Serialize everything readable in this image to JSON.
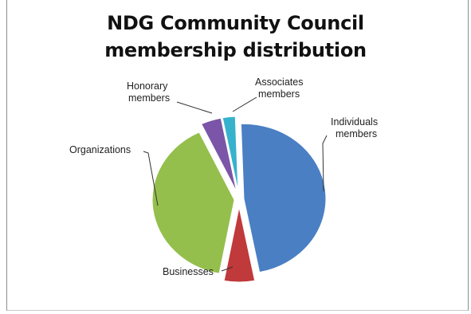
{
  "chart_data": {
    "type": "pie",
    "title_lines": [
      "NDG Community Council",
      "membership distribution"
    ],
    "exploded": true,
    "slices": [
      {
        "label": "Individuals members",
        "label_lines": [
          "Individuals",
          "members"
        ],
        "value": 47.5,
        "color": "#4a7fc4"
      },
      {
        "label": "Businesses",
        "label_lines": [
          "Businesses"
        ],
        "value": 6.0,
        "color": "#c0393b"
      },
      {
        "label": "Organizations",
        "label_lines": [
          "Organizations"
        ],
        "value": 40.0,
        "color": "#94bf4c"
      },
      {
        "label": "Honorary members",
        "label_lines": [
          "Honorary",
          "members"
        ],
        "value": 4.0,
        "color": "#7a55a8"
      },
      {
        "label": "Associates members",
        "label_lines": [
          "Associates",
          "members"
        ],
        "value": 2.5,
        "color": "#37b2cc"
      }
    ]
  }
}
